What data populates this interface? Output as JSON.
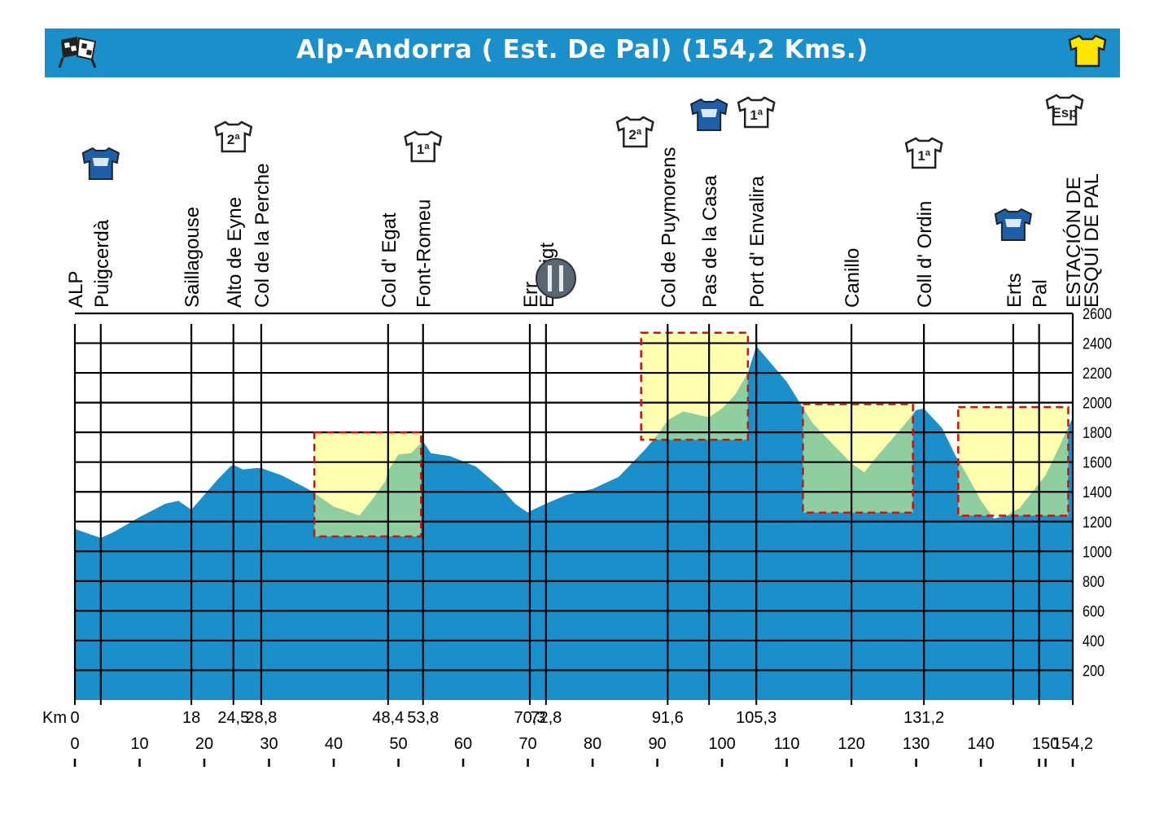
{
  "header": {
    "title": "Alp-Andorra ( Est. De Pal)  (154,2 Kms.)",
    "left_icon": "checkered-flag-icon",
    "right_icon": "yellow-jersey-icon"
  },
  "chart_data": {
    "type": "area",
    "title": "Alp-Andorra ( Est. De Pal)  (154,2 Kms.)",
    "xlabel": "Km",
    "ylabel": "",
    "xlim": [
      0,
      154.2
    ],
    "ylim": [
      0,
      2600
    ],
    "x_ticks": [
      "0",
      "10",
      "20",
      "30",
      "40",
      "50",
      "60",
      "70",
      "80",
      "90",
      "100",
      "110",
      "120",
      "130",
      "140",
      "150",
      "154,2"
    ],
    "y_ticks": [
      "2600",
      "2400",
      "2200",
      "2000",
      "1800",
      "1600",
      "1400",
      "1200",
      "1000",
      "800",
      "600",
      "400",
      "200"
    ],
    "profile": {
      "x": [
        0,
        2,
        4,
        6,
        10,
        14,
        16,
        18,
        20,
        22,
        24,
        24.5,
        26,
        28,
        28.8,
        32,
        36,
        38,
        40,
        42,
        44,
        46,
        48,
        48.4,
        50,
        52,
        53.8,
        55,
        58,
        62,
        66,
        68,
        70,
        70.3,
        72.8,
        76,
        80,
        84,
        88,
        90,
        91.6,
        94,
        96,
        98,
        100,
        102,
        104,
        105.3,
        110,
        114,
        116,
        118,
        120,
        122,
        124,
        126,
        128,
        130,
        131.2,
        134,
        136,
        138,
        140,
        142,
        144,
        146,
        148,
        150,
        152,
        154.2
      ],
      "y": [
        1150,
        1120,
        1090,
        1130,
        1230,
        1320,
        1340,
        1280,
        1380,
        1480,
        1570,
        1580,
        1550,
        1560,
        1560,
        1510,
        1420,
        1360,
        1300,
        1270,
        1240,
        1350,
        1470,
        1540,
        1650,
        1660,
        1740,
        1660,
        1640,
        1570,
        1420,
        1320,
        1260,
        1270,
        1320,
        1380,
        1420,
        1500,
        1680,
        1780,
        1880,
        1940,
        1920,
        1900,
        1960,
        2050,
        2200,
        2380,
        2140,
        1860,
        1770,
        1680,
        1590,
        1530,
        1640,
        1740,
        1840,
        1950,
        1960,
        1830,
        1650,
        1500,
        1340,
        1220,
        1240,
        1290,
        1400,
        1510,
        1690,
        1900
      ]
    },
    "places": [
      {
        "km": 0,
        "name": "ALP",
        "dist": "0"
      },
      {
        "km": 4,
        "name": "Puigcerdà",
        "dist": ""
      },
      {
        "km": 18,
        "name": "Saillagouse",
        "dist": "18"
      },
      {
        "km": 24.5,
        "name": "Alto de Eyne",
        "dist": "24,5"
      },
      {
        "km": 28.8,
        "name": "Col de la Perche",
        "dist": "28,8"
      },
      {
        "km": 48.4,
        "name": "Col d'  Egat",
        "dist": "48,4"
      },
      {
        "km": 53.8,
        "name": "Font-Romeu",
        "dist": "53,8"
      },
      {
        "km": 70.3,
        "name": "Err",
        "dist": "70,3"
      },
      {
        "km": 72.8,
        "name": "Enveigt",
        "dist": "72,8"
      },
      {
        "km": 91.6,
        "name": "Col de Puymorens",
        "dist": "91,6"
      },
      {
        "km": 98,
        "name": "Pas de la Casa",
        "dist": ""
      },
      {
        "km": 105.3,
        "name": "Port  d' Envalira",
        "dist": "105,3"
      },
      {
        "km": 120,
        "name": "Canillo",
        "dist": ""
      },
      {
        "km": 131.2,
        "name": "Coll  d'  Ordin",
        "dist": "131,2"
      },
      {
        "km": 145,
        "name": "Erts",
        "dist": ""
      },
      {
        "km": 149,
        "name": "Pal",
        "dist": ""
      },
      {
        "km": 154.2,
        "name": "ESTACIÓN DE",
        "name2": "ESQUÍ DE PAL",
        "dist": ""
      }
    ],
    "climb_labels": [
      {
        "km": 24.5,
        "label": "2ª"
      },
      {
        "km": 53.8,
        "label": "1ª"
      },
      {
        "km": 91.6,
        "label": "2ª"
      },
      {
        "km": 105.3,
        "label": "1ª"
      },
      {
        "km": 131.2,
        "label": "1ª"
      },
      {
        "km": 154.2,
        "label": "Esp"
      }
    ],
    "sprints": [
      4,
      98,
      145
    ],
    "feed_zone": 70.3,
    "highlight_boxes": [
      {
        "x0": 37,
        "x1": 53.5,
        "y0": 1100,
        "y1": 1800
      },
      {
        "x0": 87.5,
        "x1": 104,
        "y0": 1750,
        "y1": 2470
      },
      {
        "x0": 112.5,
        "x1": 129.5,
        "y0": 1260,
        "y1": 1990
      },
      {
        "x0": 136.5,
        "x1": 153.5,
        "y0": 1240,
        "y1": 1970
      }
    ],
    "km_label": "Km",
    "colors": {
      "profile": "#1a8fc9",
      "highlight_fill": "#ffffb0",
      "highlight_profile": "#8fcf9f",
      "highlight_border": "#cc1111",
      "header_bg": "#1a8fc9"
    }
  }
}
